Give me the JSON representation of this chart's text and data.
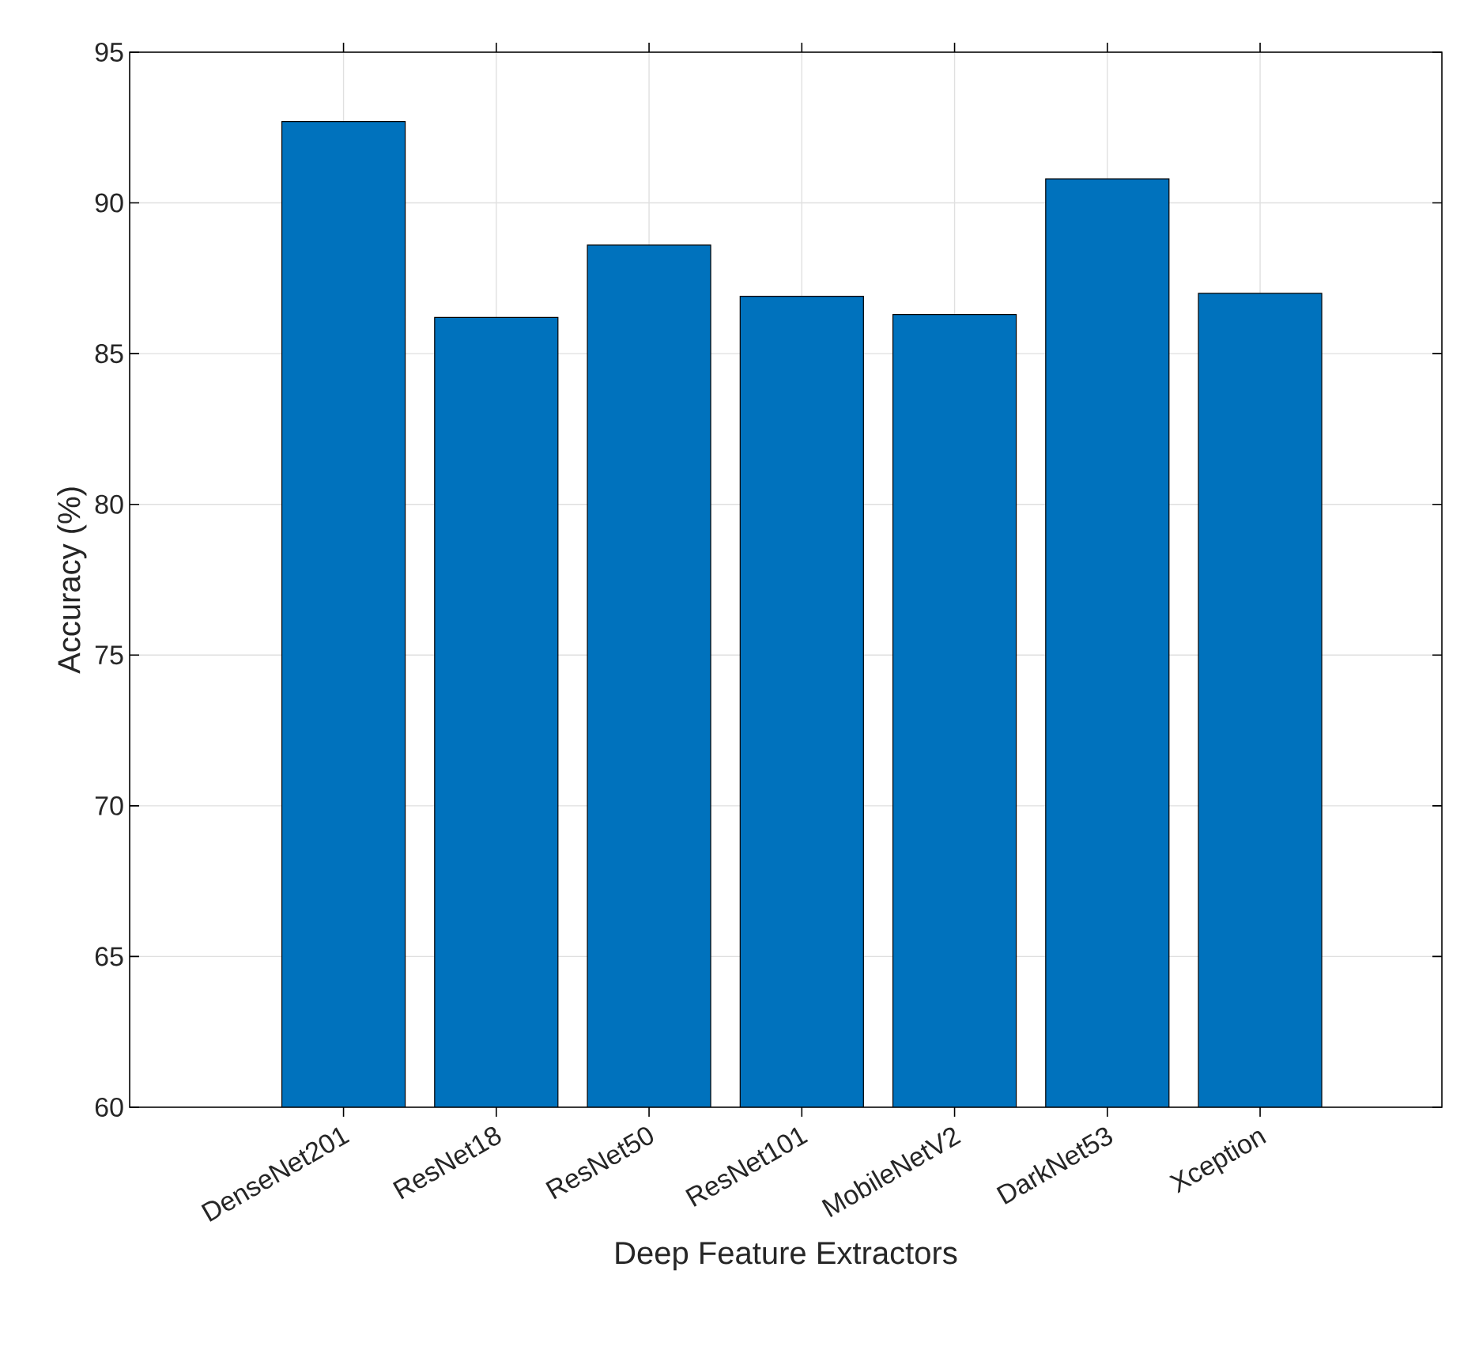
{
  "chart_data": {
    "type": "bar",
    "xlabel": "Deep Feature Extractors",
    "ylabel": "Accuracy (%)",
    "categories": [
      "DenseNet201",
      "ResNet18",
      "ResNet50",
      "ResNet101",
      "MobileNetV2",
      "DarkNet53",
      "Xception"
    ],
    "values": [
      92.7,
      86.2,
      88.6,
      86.9,
      86.3,
      90.8,
      87.0
    ],
    "color": "#0072bd",
    "ylim": [
      60,
      95
    ],
    "yticks": [
      60,
      65,
      70,
      75,
      80,
      85,
      90,
      95
    ],
    "grid": true
  }
}
